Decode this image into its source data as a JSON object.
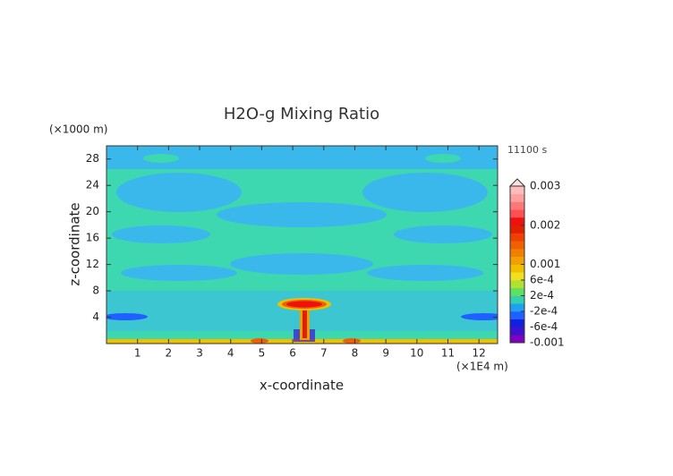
{
  "chart_data": {
    "type": "contour",
    "title": "H2O-g Mixing Ratio",
    "x_label": "x-coordinate",
    "y_label": "z-coordinate",
    "x_unit": "(×1E4 m)",
    "y_unit": "(×1000 m)",
    "time_label": "11100 s",
    "xlim": [
      0,
      12.6
    ],
    "ylim": [
      0,
      30
    ],
    "xticks": [
      1,
      2,
      3,
      4,
      5,
      6,
      7,
      8,
      9,
      10,
      11,
      12
    ],
    "yticks": [
      4,
      8,
      12,
      16,
      20,
      24,
      28
    ],
    "colorbar": {
      "lim": [
        -0.001,
        0.003
      ],
      "ticks": [
        0.003,
        0.002,
        0.001,
        {
          "value": 0.0006,
          "label": "6e-4"
        },
        {
          "value": 0.0002,
          "label": "2e-4"
        },
        {
          "value": -0.0002,
          "label": "-2e-4"
        },
        {
          "value": -0.0006,
          "label": "-6e-4"
        },
        -0.001
      ],
      "colors": [
        "#8000c0",
        "#4010d0",
        "#1020e0",
        "#2060ff",
        "#20a0f0",
        "#30d0b0",
        "#60e060",
        "#b0e030",
        "#f0e020",
        "#f0c000",
        "#f0a000",
        "#f08000",
        "#f06000",
        "#f04000",
        "#e02000",
        "#f01010",
        "#ff5050",
        "#ff7878",
        "#ffa0a0",
        "#ffbcbc"
      ],
      "over_color": "#ffe0e0"
    }
  }
}
